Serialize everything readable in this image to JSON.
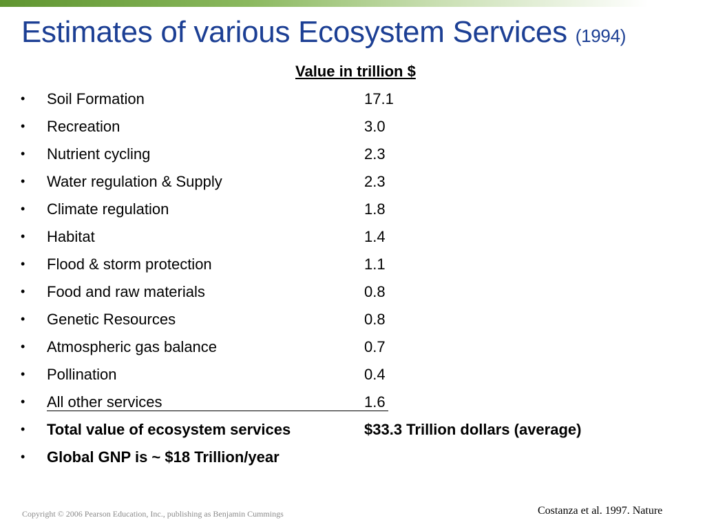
{
  "slide": {
    "title": "Estimates of various Ecosystem Services",
    "title_year": "(1994)",
    "column_header": "Value in trillion $",
    "bullet_glyph": "•",
    "rows": [
      {
        "label": "Soil Formation",
        "value": "17.1"
      },
      {
        "label": "Recreation",
        "value": "3.0"
      },
      {
        "label": "Nutrient cycling",
        "value": "2.3"
      },
      {
        "label": "Water regulation & Supply",
        "value": "2.3"
      },
      {
        "label": "Climate regulation",
        "value": "1.8"
      },
      {
        "label": "Habitat",
        "value": "1.4"
      },
      {
        "label": "Flood & storm protection",
        "value": "1.1"
      },
      {
        "label": "Food and raw materials",
        "value": "0.8"
      },
      {
        "label": "Genetic Resources",
        "value": "0.8"
      },
      {
        "label": "Atmospheric gas balance",
        "value": "0.7"
      },
      {
        "label": "Pollination",
        "value": "0.4"
      },
      {
        "label": "All other services",
        "value": "1.6"
      },
      {
        "label": "Total value of ecosystem services",
        "value": "$33.3 Trillion dollars (average)"
      },
      {
        "label": "Global GNP is ~ $18 Trillion/year",
        "value": ""
      }
    ],
    "copyright": "Copyright © 2006 Pearson Education, Inc., publishing as Benjamin Cummings",
    "citation": "Costanza et al. 1997. Nature"
  },
  "colors": {
    "title": "#1c3f94",
    "accent_green": "#5f9530",
    "footer_gray": "#8a8a8a"
  }
}
